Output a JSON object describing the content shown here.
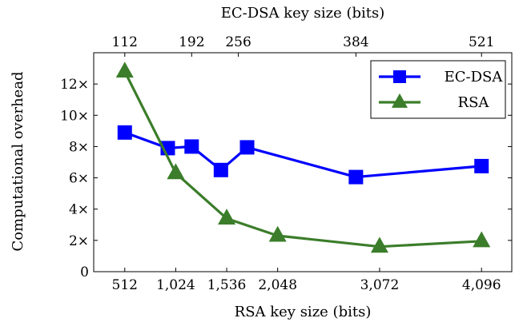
{
  "chart_data": {
    "type": "line",
    "xlabel": "RSA key size (bits)",
    "x2label": "EC-DSA key size (bits)",
    "ylabel": "Computational overhead",
    "xlim": [
      200,
      4400
    ],
    "ylim": [
      0,
      14
    ],
    "yticks": [
      0,
      2,
      4,
      6,
      8,
      10,
      12
    ],
    "ytick_labels": [
      "0",
      "2×",
      "4×",
      "6×",
      "8×",
      "10×",
      "12×"
    ],
    "xticks": [
      512,
      1024,
      1536,
      2048,
      3072,
      4096
    ],
    "xtick_labels": [
      "512",
      "1,024",
      "1,536",
      "2,048",
      "3,072",
      "4,096"
    ],
    "x2ticks": [
      512,
      1184,
      1653,
      2834,
      4096
    ],
    "x2tick_labels": [
      "112",
      "192",
      "256",
      "384",
      "521"
    ],
    "legend_position": "top-right",
    "series": [
      {
        "name": "EC-DSA",
        "color": "#0000ff",
        "marker": "square",
        "x": [
          512,
          944,
          1184,
          1478,
          1741,
          2834,
          4096
        ],
        "y": [
          8.9,
          7.9,
          8.0,
          6.5,
          7.95,
          6.05,
          6.75
        ]
      },
      {
        "name": "RSA",
        "color": "#3b7d2a",
        "marker": "triangle",
        "x": [
          512,
          1024,
          1536,
          2048,
          3072,
          4096
        ],
        "y": [
          12.8,
          6.3,
          3.4,
          2.3,
          1.6,
          1.95
        ]
      }
    ]
  }
}
